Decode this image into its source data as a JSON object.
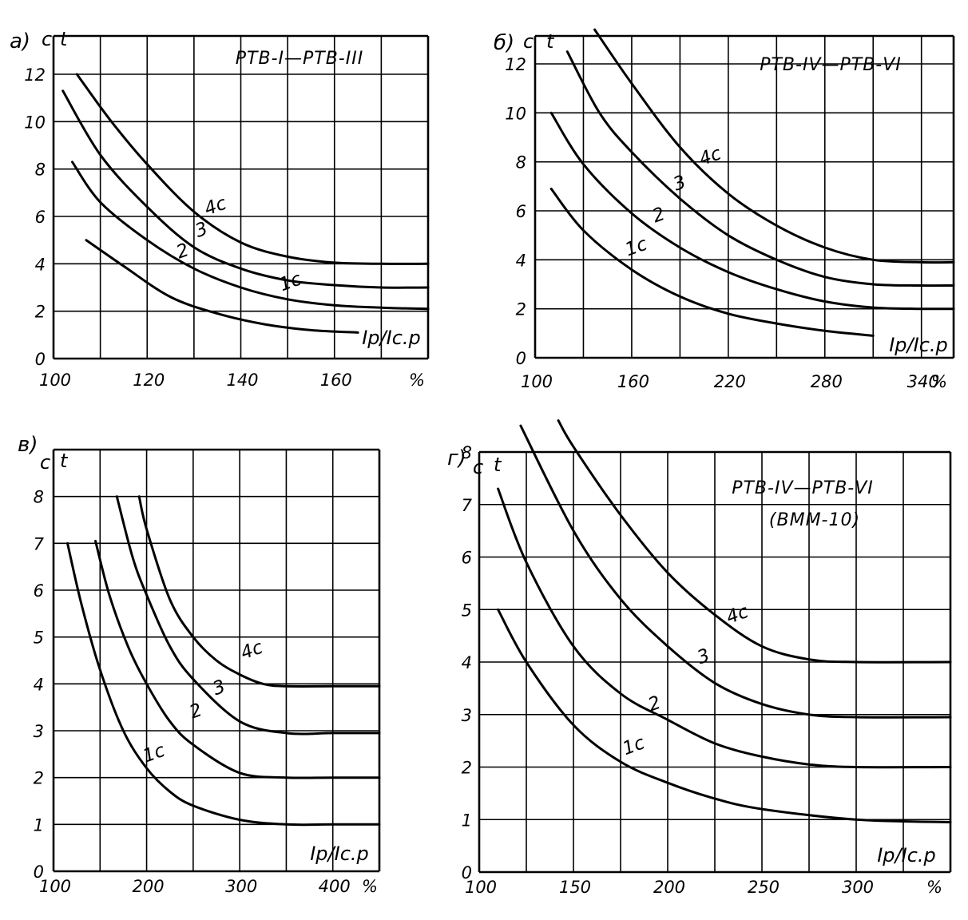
{
  "chart_data": [
    {
      "type": "line",
      "panel": "а)",
      "title": "РТВ-I—РТВ-III",
      "y_unit": "с",
      "ylabel": "t",
      "xlabel": "Iр/Iс.р",
      "x_unit": "%",
      "xlim": [
        100,
        180
      ],
      "ylim": [
        0,
        12
      ],
      "x_ticks": [
        100,
        120,
        140,
        160
      ],
      "x_tick_labels": [
        "100",
        "120",
        "140",
        "160"
      ],
      "y_ticks": [
        0,
        2,
        4,
        6,
        8,
        10,
        12
      ],
      "y_tick_labels": [
        "0",
        "2",
        "4",
        "6",
        "8",
        "10",
        "12"
      ],
      "x_grid": [
        100,
        110,
        120,
        130,
        140,
        150,
        160,
        170,
        180
      ],
      "y_grid": [
        0,
        2,
        4,
        6,
        8,
        10,
        12
      ],
      "series": [
        {
          "name": "1с",
          "label_x": 151,
          "label_y": 3.0,
          "points": [
            [
              107,
              5.0
            ],
            [
              115,
              3.9
            ],
            [
              125,
              2.6
            ],
            [
              135,
              1.9
            ],
            [
              145,
              1.45
            ],
            [
              155,
              1.2
            ],
            [
              165,
              1.1
            ]
          ]
        },
        {
          "name": "2",
          "label_x": 128,
          "label_y": 4.3,
          "points": [
            [
              104,
              8.3
            ],
            [
              110,
              6.6
            ],
            [
              120,
              5.0
            ],
            [
              130,
              3.8
            ],
            [
              140,
              3.0
            ],
            [
              150,
              2.5
            ],
            [
              160,
              2.25
            ],
            [
              170,
              2.15
            ],
            [
              180,
              2.1
            ]
          ]
        },
        {
          "name": "3",
          "label_x": 132,
          "label_y": 5.2,
          "points": [
            [
              102,
              11.3
            ],
            [
              110,
              8.6
            ],
            [
              120,
              6.4
            ],
            [
              130,
              4.7
            ],
            [
              140,
              3.8
            ],
            [
              150,
              3.3
            ],
            [
              160,
              3.1
            ],
            [
              170,
              3.0
            ],
            [
              180,
              3.0
            ]
          ]
        },
        {
          "name": "4с",
          "label_x": 135,
          "label_y": 6.2,
          "points": [
            [
              105,
              12.0
            ],
            [
              112,
              10.1
            ],
            [
              120,
              8.2
            ],
            [
              130,
              6.2
            ],
            [
              140,
              4.9
            ],
            [
              150,
              4.3
            ],
            [
              160,
              4.05
            ],
            [
              170,
              4.0
            ],
            [
              180,
              4.0
            ]
          ]
        }
      ]
    },
    {
      "type": "line",
      "panel": "б)",
      "title": "РТВ-IV—РТВ-VI",
      "y_unit": "с",
      "ylabel": "t",
      "xlabel": "Iр/Iс.р",
      "x_unit": "%",
      "xlim": [
        100,
        360
      ],
      "ylim": [
        0,
        13.5
      ],
      "x_ticks": [
        100,
        160,
        220,
        280,
        340
      ],
      "x_tick_labels": [
        "100",
        "160",
        "220",
        "280",
        "340"
      ],
      "y_ticks": [
        0,
        2,
        4,
        6,
        8,
        10,
        12
      ],
      "y_tick_labels": [
        "0",
        "2",
        "4",
        "6",
        "8",
        "10",
        "12"
      ],
      "x_grid": [
        100,
        130,
        160,
        190,
        220,
        250,
        280,
        310,
        340,
        360
      ],
      "y_grid": [
        0,
        2,
        4,
        6,
        8,
        10,
        12
      ],
      "series": [
        {
          "name": "1с",
          "label_x": 164,
          "label_y": 4.3,
          "points": [
            [
              110,
              6.9
            ],
            [
              130,
              5.2
            ],
            [
              160,
              3.6
            ],
            [
              190,
              2.5
            ],
            [
              220,
              1.8
            ],
            [
              250,
              1.4
            ],
            [
              280,
              1.1
            ],
            [
              310,
              0.9
            ]
          ]
        },
        {
          "name": "2",
          "label_x": 178,
          "label_y": 5.6,
          "points": [
            [
              110,
              10.0
            ],
            [
              130,
              7.9
            ],
            [
              160,
              5.9
            ],
            [
              190,
              4.5
            ],
            [
              220,
              3.5
            ],
            [
              250,
              2.8
            ],
            [
              280,
              2.3
            ],
            [
              310,
              2.05
            ],
            [
              340,
              2.0
            ],
            [
              360,
              2.0
            ]
          ]
        },
        {
          "name": "3",
          "label_x": 191,
          "label_y": 6.9,
          "points": [
            [
              120,
              12.5
            ],
            [
              140,
              10.0
            ],
            [
              160,
              8.4
            ],
            [
              190,
              6.5
            ],
            [
              220,
              5.0
            ],
            [
              250,
              4.0
            ],
            [
              280,
              3.3
            ],
            [
              310,
              3.0
            ],
            [
              340,
              2.95
            ],
            [
              360,
              2.95
            ]
          ]
        },
        {
          "name": "4с",
          "label_x": 210,
          "label_y": 8.0,
          "points": [
            [
              137,
              13.4
            ],
            [
              160,
              11.2
            ],
            [
              190,
              8.6
            ],
            [
              220,
              6.7
            ],
            [
              250,
              5.4
            ],
            [
              280,
              4.5
            ],
            [
              310,
              4.0
            ],
            [
              340,
              3.9
            ],
            [
              360,
              3.9
            ]
          ]
        }
      ]
    },
    {
      "type": "line",
      "panel": "в)",
      "y_unit": "с",
      "ylabel": "t",
      "xlabel": "Iр/Iс.р",
      "x_unit": "%",
      "xlim": [
        100,
        450
      ],
      "ylim": [
        0,
        9
      ],
      "x_ticks": [
        100,
        200,
        300,
        400
      ],
      "x_tick_labels": [
        "100",
        "200",
        "300",
        "400"
      ],
      "y_ticks": [
        0,
        1,
        2,
        3,
        4,
        5,
        6,
        7,
        8
      ],
      "y_tick_labels": [
        "0",
        "1",
        "2",
        "3",
        "4",
        "5",
        "6",
        "7",
        "8"
      ],
      "x_grid": [
        100,
        150,
        200,
        250,
        300,
        350,
        400,
        450
      ],
      "y_grid": [
        0,
        1,
        2,
        3,
        4,
        5,
        6,
        7,
        8,
        9
      ],
      "series": [
        {
          "name": "1с",
          "label_x": 210,
          "label_y": 2.4,
          "points": [
            [
              115,
              7.0
            ],
            [
              130,
              5.7
            ],
            [
              150,
              4.3
            ],
            [
              175,
              3.0
            ],
            [
              200,
              2.2
            ],
            [
              225,
              1.7
            ],
            [
              250,
              1.4
            ],
            [
              300,
              1.1
            ],
            [
              350,
              1.0
            ],
            [
              400,
              1.0
            ],
            [
              450,
              1.0
            ]
          ]
        },
        {
          "name": "2",
          "label_x": 255,
          "label_y": 3.3,
          "points": [
            [
              145,
              7.05
            ],
            [
              160,
              5.9
            ],
            [
              180,
              4.8
            ],
            [
              200,
              4.0
            ],
            [
              225,
              3.2
            ],
            [
              250,
              2.7
            ],
            [
              300,
              2.1
            ],
            [
              350,
              2.0
            ],
            [
              400,
              2.0
            ],
            [
              450,
              2.0
            ]
          ]
        },
        {
          "name": "3",
          "label_x": 280,
          "label_y": 3.8,
          "points": [
            [
              168,
              8.0
            ],
            [
              185,
              6.7
            ],
            [
              200,
              5.9
            ],
            [
              225,
              4.8
            ],
            [
              250,
              4.1
            ],
            [
              300,
              3.2
            ],
            [
              350,
              2.95
            ],
            [
              400,
              2.95
            ],
            [
              450,
              2.95
            ]
          ]
        },
        {
          "name": "4с",
          "label_x": 315,
          "label_y": 4.6,
          "points": [
            [
              192,
              8.0
            ],
            [
              200,
              7.3
            ],
            [
              225,
              5.8
            ],
            [
              250,
              5.0
            ],
            [
              275,
              4.5
            ],
            [
              300,
              4.2
            ],
            [
              325,
              4.0
            ],
            [
              350,
              3.95
            ],
            [
              400,
              3.95
            ],
            [
              450,
              3.95
            ]
          ]
        }
      ]
    },
    {
      "type": "line",
      "panel": "г)",
      "title": "РТВ-IV—РТВ-VI",
      "subtitle": "(ВММ-10)",
      "y_unit": "с",
      "ylabel": "t",
      "xlabel": "Iр/Iс.р",
      "x_unit": "%",
      "xlim": [
        100,
        350
      ],
      "ylim": [
        0,
        9
      ],
      "x_ticks": [
        100,
        150,
        200,
        250,
        300
      ],
      "x_tick_labels": [
        "100",
        "150",
        "200",
        "250",
        "300"
      ],
      "y_ticks": [
        0,
        1,
        2,
        3,
        4,
        5,
        6,
        7,
        8
      ],
      "y_tick_labels": [
        "0",
        "1",
        "2",
        "3",
        "4",
        "5",
        "6",
        "7",
        "8"
      ],
      "x_grid": [
        100,
        125,
        150,
        175,
        200,
        225,
        250,
        275,
        300,
        325,
        350
      ],
      "y_grid": [
        0,
        1,
        2,
        3,
        4,
        5,
        6,
        7,
        8
      ],
      "series": [
        {
          "name": "1с",
          "label_x": 183,
          "label_y": 2.3,
          "points": [
            [
              110,
              5.0
            ],
            [
              125,
              4.0
            ],
            [
              150,
              2.8
            ],
            [
              175,
              2.1
            ],
            [
              200,
              1.7
            ],
            [
              225,
              1.4
            ],
            [
              250,
              1.2
            ],
            [
              300,
              1.0
            ],
            [
              350,
              0.95
            ]
          ]
        },
        {
          "name": "2",
          "label_x": 194,
          "label_y": 3.1,
          "points": [
            [
              110,
              7.3
            ],
            [
              125,
              5.9
            ],
            [
              150,
              4.3
            ],
            [
              175,
              3.4
            ],
            [
              200,
              2.9
            ],
            [
              225,
              2.45
            ],
            [
              250,
              2.2
            ],
            [
              275,
              2.05
            ],
            [
              300,
              2.0
            ],
            [
              350,
              2.0
            ]
          ]
        },
        {
          "name": "3",
          "label_x": 220,
          "label_y": 4.0,
          "points": [
            [
              122,
              8.5
            ],
            [
              150,
              6.5
            ],
            [
              175,
              5.2
            ],
            [
              200,
              4.3
            ],
            [
              225,
              3.6
            ],
            [
              250,
              3.2
            ],
            [
              275,
              3.0
            ],
            [
              300,
              2.95
            ],
            [
              350,
              2.95
            ]
          ]
        },
        {
          "name": "4с",
          "label_x": 238,
          "label_y": 4.8,
          "points": [
            [
              142,
              8.6
            ],
            [
              150,
              8.1
            ],
            [
              175,
              6.8
            ],
            [
              200,
              5.7
            ],
            [
              225,
              4.9
            ],
            [
              250,
              4.3
            ],
            [
              275,
              4.05
            ],
            [
              300,
              4.0
            ],
            [
              350,
              4.0
            ]
          ]
        }
      ]
    }
  ]
}
